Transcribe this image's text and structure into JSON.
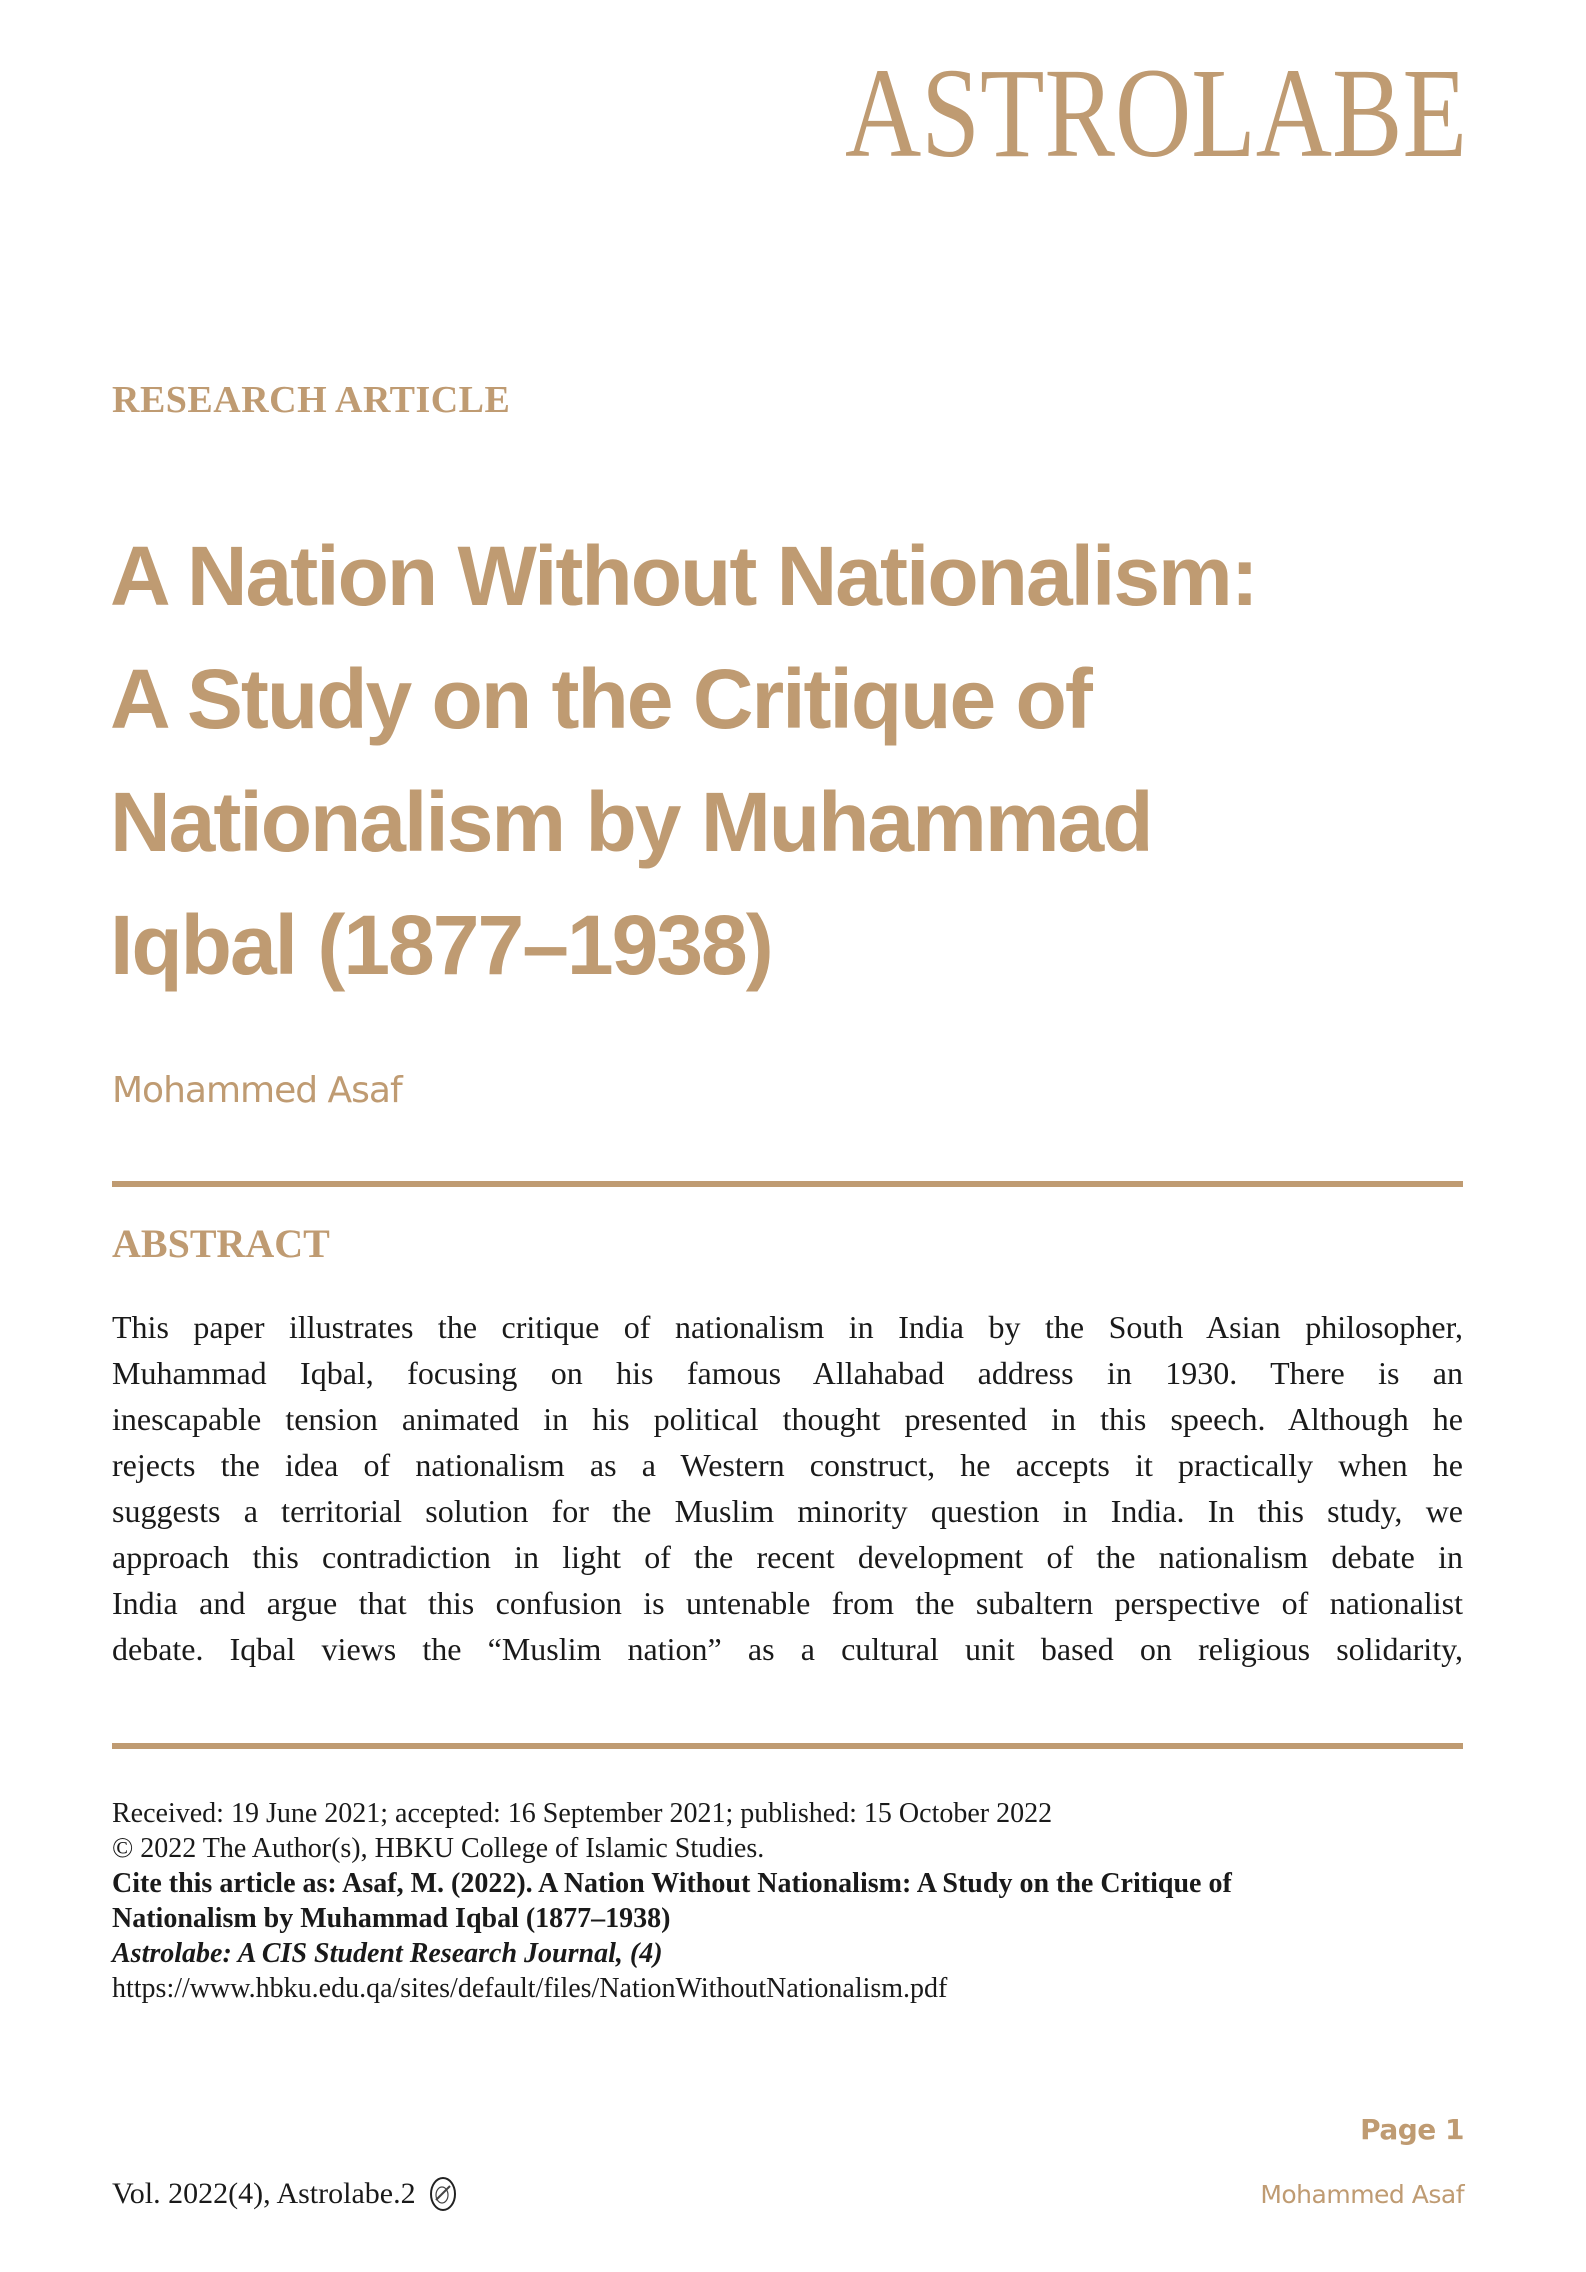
{
  "brand": {
    "logo_text": "ASTROLABE",
    "color": "#BF9B72"
  },
  "article": {
    "kicker": "RESEARCH ARTICLE",
    "title_lines": [
      "A Nation Without Nationalism:",
      "A Study on the Critique of",
      "Nationalism by Muhammad",
      "Iqbal (1877–1938)"
    ],
    "author": "Mohammed Asaf"
  },
  "abstract": {
    "heading": "ABSTRACT",
    "lines": [
      "This paper illustrates the critique of nationalism in India by the South Asian philosopher,",
      "Muhammad Iqbal, focusing on his famous Allahabad address in 1930. There is an",
      "inescapable tension animated in his political thought presented in this speech. Although he",
      "rejects the idea of nationalism as a Western construct, he accepts it practically when he",
      "suggests a territorial solution for the Muslim minority question in India. In this study, we",
      "approach this contradiction in light of the recent development of the nationalism debate in",
      "India and argue that this confusion is untenable from the subaltern perspective of nationalist",
      "debate. Iqbal views the “Muslim nation” as a cultural unit based on religious solidarity,"
    ]
  },
  "meta": {
    "dates": "Received: 19 June 2021; accepted: 16 September 2021; published: 15 October 2022",
    "copyright": "© 2022 The Author(s), HBKU College of Islamic Studies.",
    "cite_line1": "Cite this article as: Asaf, M. (2022). A Nation Without Nationalism: A Study on the Critique of",
    "cite_line2": "Nationalism by Muhammad Iqbal (1877–1938)",
    "journal": "Astrolabe: A CIS Student Research Journal, (4)",
    "url": "https://www.hbku.edu.qa/sites/default/files/NationWithoutNationalism.pdf"
  },
  "footer": {
    "page": "Page 1",
    "volume": "Vol. 2022(4), Astrolabe.2",
    "author": "Mohammed Asaf",
    "icon": "astrolabe-emblem-icon"
  }
}
